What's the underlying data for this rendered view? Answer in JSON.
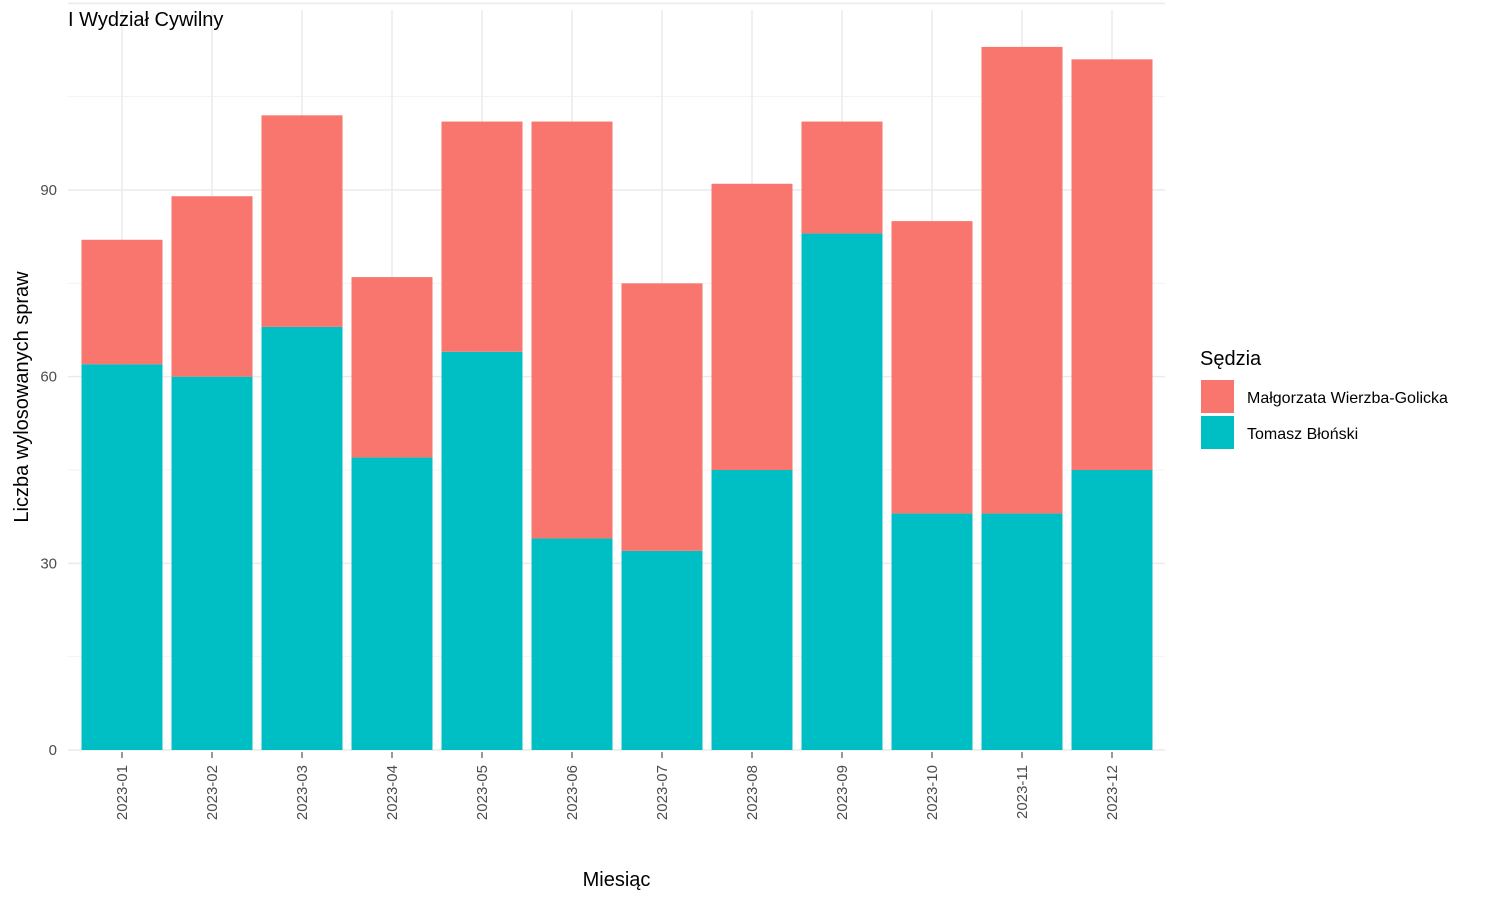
{
  "chart_data": {
    "type": "bar",
    "stacked": true,
    "title": "I Wydział Cywilny",
    "xlabel": "Miesiąc",
    "ylabel": "Liczba wylosowanych spraw",
    "categories": [
      "2023-01",
      "2023-02",
      "2023-03",
      "2023-04",
      "2023-05",
      "2023-06",
      "2023-07",
      "2023-08",
      "2023-09",
      "2023-10",
      "2023-11",
      "2023-12"
    ],
    "y_ticks": [
      0,
      30,
      60,
      90
    ],
    "ylim": [
      0,
      120
    ],
    "grid": true,
    "legend": {
      "title": "Sędzia",
      "position": "right"
    },
    "series": [
      {
        "name": "Tomasz Błoński",
        "color": "#00BFC4",
        "values": [
          62,
          60,
          68,
          47,
          64,
          34,
          32,
          45,
          83,
          38,
          38,
          45
        ]
      },
      {
        "name": "Małgorzata Wierzba-Golicka",
        "color": "#F8766D",
        "values": [
          20,
          29,
          34,
          29,
          37,
          67,
          43,
          46,
          18,
          47,
          75,
          66
        ]
      }
    ],
    "legend_order": [
      "Małgorzata Wierzba-Golicka",
      "Tomasz Błoński"
    ]
  }
}
